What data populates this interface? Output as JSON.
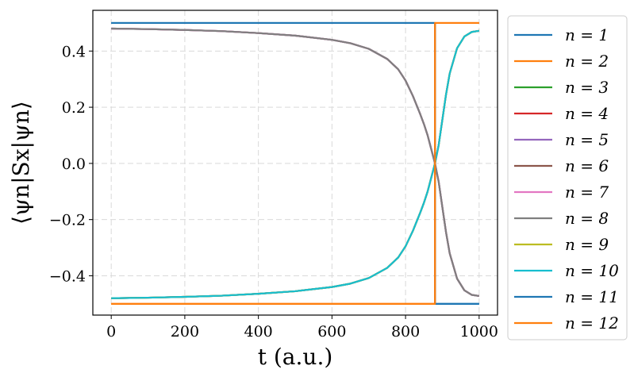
{
  "chart_data": {
    "type": "line",
    "xlabel": "t (a.u.)",
    "ylabel": "⟨ψn|Sx|ψn⟩",
    "xlim": [
      -50,
      1050
    ],
    "ylim": [
      -0.54,
      0.545
    ],
    "xticks": [
      0,
      200,
      400,
      600,
      800,
      1000
    ],
    "yticks": [
      -0.4,
      -0.2,
      0.0,
      0.2,
      0.4
    ],
    "xtick_labels": [
      "0",
      "200",
      "400",
      "600",
      "800",
      "1000"
    ],
    "ytick_labels": [
      "−0.4",
      "−0.2",
      "0.0",
      "0.2",
      "0.4"
    ],
    "grid": true,
    "legend_position": "outside-right",
    "colors": [
      "#1f77b4",
      "#ff7f0e",
      "#2ca02c",
      "#d62728",
      "#9467bd",
      "#8c564b",
      "#e377c2",
      "#7f7f7f",
      "#bcbd22",
      "#17becf",
      "#1f77b4",
      "#ff7f0e"
    ],
    "crossing_t": 880,
    "x": [
      0,
      100,
      200,
      300,
      400,
      500,
      600,
      650,
      700,
      750,
      780,
      800,
      820,
      840,
      850,
      860,
      870,
      880,
      890,
      900,
      910,
      920,
      940,
      960,
      980,
      1000
    ],
    "series": [
      {
        "name": "n = 1",
        "values": [
          0.5,
          0.5,
          0.5,
          0.5,
          0.5,
          0.5,
          0.5,
          0.5,
          0.5,
          0.5,
          0.5,
          0.5,
          0.5,
          0.5,
          0.5,
          0.5,
          0.5,
          -0.5,
          -0.5,
          -0.5,
          -0.5,
          -0.5,
          -0.5,
          -0.5,
          -0.5,
          -0.5
        ]
      },
      {
        "name": "n = 2",
        "values": [
          -0.5,
          -0.5,
          -0.5,
          -0.5,
          -0.5,
          -0.5,
          -0.5,
          -0.5,
          -0.5,
          -0.5,
          -0.5,
          -0.5,
          -0.5,
          -0.5,
          -0.5,
          -0.5,
          -0.5,
          0.5,
          0.5,
          0.5,
          0.5,
          0.5,
          0.5,
          0.5,
          0.5,
          0.5
        ]
      },
      {
        "name": "n = 3",
        "values": [
          -0.48,
          -0.478,
          -0.475,
          -0.471,
          -0.464,
          -0.455,
          -0.44,
          -0.428,
          -0.408,
          -0.372,
          -0.335,
          -0.295,
          -0.24,
          -0.175,
          -0.14,
          -0.1,
          -0.05,
          0.0,
          0.065,
          0.155,
          0.245,
          0.32,
          0.41,
          0.452,
          0.468,
          0.472
        ]
      },
      {
        "name": "n = 4",
        "values": [
          -0.48,
          -0.478,
          -0.475,
          -0.471,
          -0.464,
          -0.455,
          -0.44,
          -0.428,
          -0.408,
          -0.372,
          -0.335,
          -0.295,
          -0.24,
          -0.175,
          -0.14,
          -0.1,
          -0.05,
          0.0,
          0.065,
          0.155,
          0.245,
          0.32,
          0.41,
          0.452,
          0.468,
          0.472
        ]
      },
      {
        "name": "n = 5",
        "values": [
          0.48,
          0.478,
          0.475,
          0.471,
          0.464,
          0.455,
          0.44,
          0.428,
          0.408,
          0.372,
          0.335,
          0.295,
          0.24,
          0.175,
          0.14,
          0.1,
          0.05,
          0.0,
          -0.065,
          -0.155,
          -0.245,
          -0.32,
          -0.41,
          -0.452,
          -0.468,
          -0.472
        ]
      },
      {
        "name": "n = 6",
        "values": [
          0.48,
          0.478,
          0.475,
          0.471,
          0.464,
          0.455,
          0.44,
          0.428,
          0.408,
          0.372,
          0.335,
          0.295,
          0.24,
          0.175,
          0.14,
          0.1,
          0.05,
          0.0,
          -0.065,
          -0.155,
          -0.245,
          -0.32,
          -0.41,
          -0.452,
          -0.468,
          -0.472
        ]
      },
      {
        "name": "n = 7",
        "values": [
          0.48,
          0.478,
          0.475,
          0.471,
          0.464,
          0.455,
          0.44,
          0.428,
          0.408,
          0.372,
          0.335,
          0.295,
          0.24,
          0.175,
          0.14,
          0.1,
          0.05,
          0.0,
          -0.065,
          -0.155,
          -0.245,
          -0.32,
          -0.41,
          -0.452,
          -0.468,
          -0.472
        ]
      },
      {
        "name": "n = 8",
        "values": [
          0.48,
          0.478,
          0.475,
          0.471,
          0.464,
          0.455,
          0.44,
          0.428,
          0.408,
          0.372,
          0.335,
          0.295,
          0.24,
          0.175,
          0.14,
          0.1,
          0.05,
          0.0,
          -0.065,
          -0.155,
          -0.245,
          -0.32,
          -0.41,
          -0.452,
          -0.468,
          -0.472
        ]
      },
      {
        "name": "n = 9",
        "values": [
          -0.48,
          -0.478,
          -0.475,
          -0.471,
          -0.464,
          -0.455,
          -0.44,
          -0.428,
          -0.408,
          -0.372,
          -0.335,
          -0.295,
          -0.24,
          -0.175,
          -0.14,
          -0.1,
          -0.05,
          0.0,
          0.065,
          0.155,
          0.245,
          0.32,
          0.41,
          0.452,
          0.468,
          0.472
        ]
      },
      {
        "name": "n = 10",
        "values": [
          -0.48,
          -0.478,
          -0.475,
          -0.471,
          -0.464,
          -0.455,
          -0.44,
          -0.428,
          -0.408,
          -0.372,
          -0.335,
          -0.295,
          -0.24,
          -0.175,
          -0.14,
          -0.1,
          -0.05,
          0.0,
          0.065,
          0.155,
          0.245,
          0.32,
          0.41,
          0.452,
          0.468,
          0.472
        ]
      },
      {
        "name": "n = 11",
        "values": [
          0.5,
          0.5,
          0.5,
          0.5,
          0.5,
          0.5,
          0.5,
          0.5,
          0.5,
          0.5,
          0.5,
          0.5,
          0.5,
          0.5,
          0.5,
          0.5,
          0.5,
          -0.5,
          -0.5,
          -0.5,
          -0.5,
          -0.5,
          -0.5,
          -0.5,
          -0.5,
          -0.5
        ]
      },
      {
        "name": "n = 12",
        "values": [
          -0.5,
          -0.5,
          -0.5,
          -0.5,
          -0.5,
          -0.5,
          -0.5,
          -0.5,
          -0.5,
          -0.5,
          -0.5,
          -0.5,
          -0.5,
          -0.5,
          -0.5,
          -0.5,
          -0.5,
          0.5,
          0.5,
          0.5,
          0.5,
          0.5,
          0.5,
          0.5,
          0.5,
          0.5
        ]
      }
    ]
  }
}
